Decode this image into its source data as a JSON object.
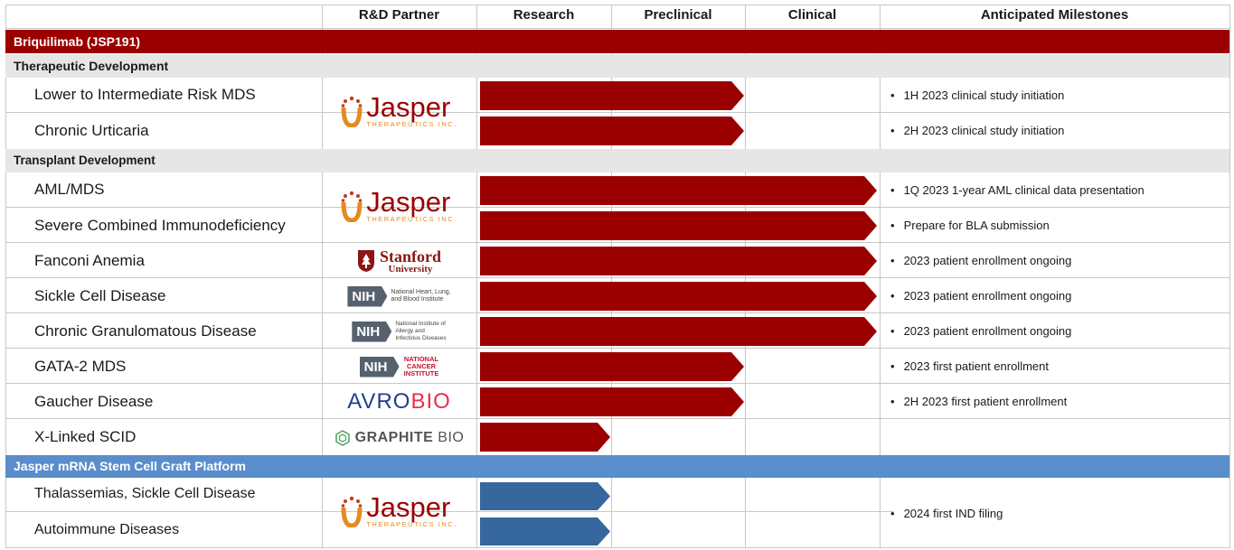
{
  "columns": {
    "partner": "R&D Partner",
    "research": "Research",
    "preclinical": "Preclinical",
    "clinical": "Clinical",
    "milestones": "Anticipated Milestones"
  },
  "program_title": "Briquilimab (JSP191)",
  "sections": {
    "therapeutic": "Therapeutic Development",
    "transplant": "Transplant Development",
    "platform": "Jasper mRNA Stem Cell Graft  Platform"
  },
  "rows": [
    {
      "indication": "Lower to Intermediate Risk MDS",
      "milestone": "1H 2023 clinical study initiation"
    },
    {
      "indication": "Chronic Urticaria",
      "milestone": "2H 2023 clinical study initiation"
    },
    {
      "indication": "AML/MDS",
      "milestone": "1Q 2023 1-year AML clinical data presentation"
    },
    {
      "indication": "Severe Combined Immunodeficiency",
      "milestone": "Prepare for BLA submission"
    },
    {
      "indication": "Fanconi Anemia",
      "milestone": "2023 patient enrollment ongoing"
    },
    {
      "indication": "Sickle Cell Disease",
      "milestone": "2023 patient enrollment ongoing"
    },
    {
      "indication": "Chronic Granulomatous  Disease",
      "milestone": "2023 patient enrollment ongoing"
    },
    {
      "indication": "GATA-2 MDS",
      "milestone": "2023 first patient enrollment"
    },
    {
      "indication": "Gaucher Disease",
      "milestone": "2H 2023 first patient enrollment"
    },
    {
      "indication": "X-Linked SCID",
      "milestone": ""
    },
    {
      "indication": "Thalassemias, Sickle Cell Disease",
      "milestone": ""
    },
    {
      "indication": "Autoimmune Diseases",
      "milestone": ""
    }
  ],
  "platform_milestone": "2024 first IND filing",
  "partners": {
    "jasper_name": "Jasper",
    "jasper_sub": "THERAPEUTICS INC.",
    "stanford_name": "Stanford",
    "stanford_sub": "University",
    "nih": "NIH",
    "nhlbi_1": "National Heart, Lung,",
    "nhlbi_2": "and Blood Institute",
    "niaid_1": "National Institute of",
    "niaid_2": "Allergy and",
    "niaid_3": "Infectious Diseases",
    "nci_1": "NATIONAL",
    "nci_2": "CANCER",
    "nci_3": "INSTITUTE",
    "avrobio_a": "AV",
    "avrobio_b": "RO",
    "avrobio_c": "BIO",
    "graphite": "GRAPHITE",
    "graphite_bio": "BIO"
  },
  "colors": {
    "maroon": "#9b0000",
    "blue_band": "#5a8dcb",
    "blue_arrow": "#36679e",
    "gray_band": "#e6e6e6",
    "jasper_orange": "#e58a1f"
  }
}
